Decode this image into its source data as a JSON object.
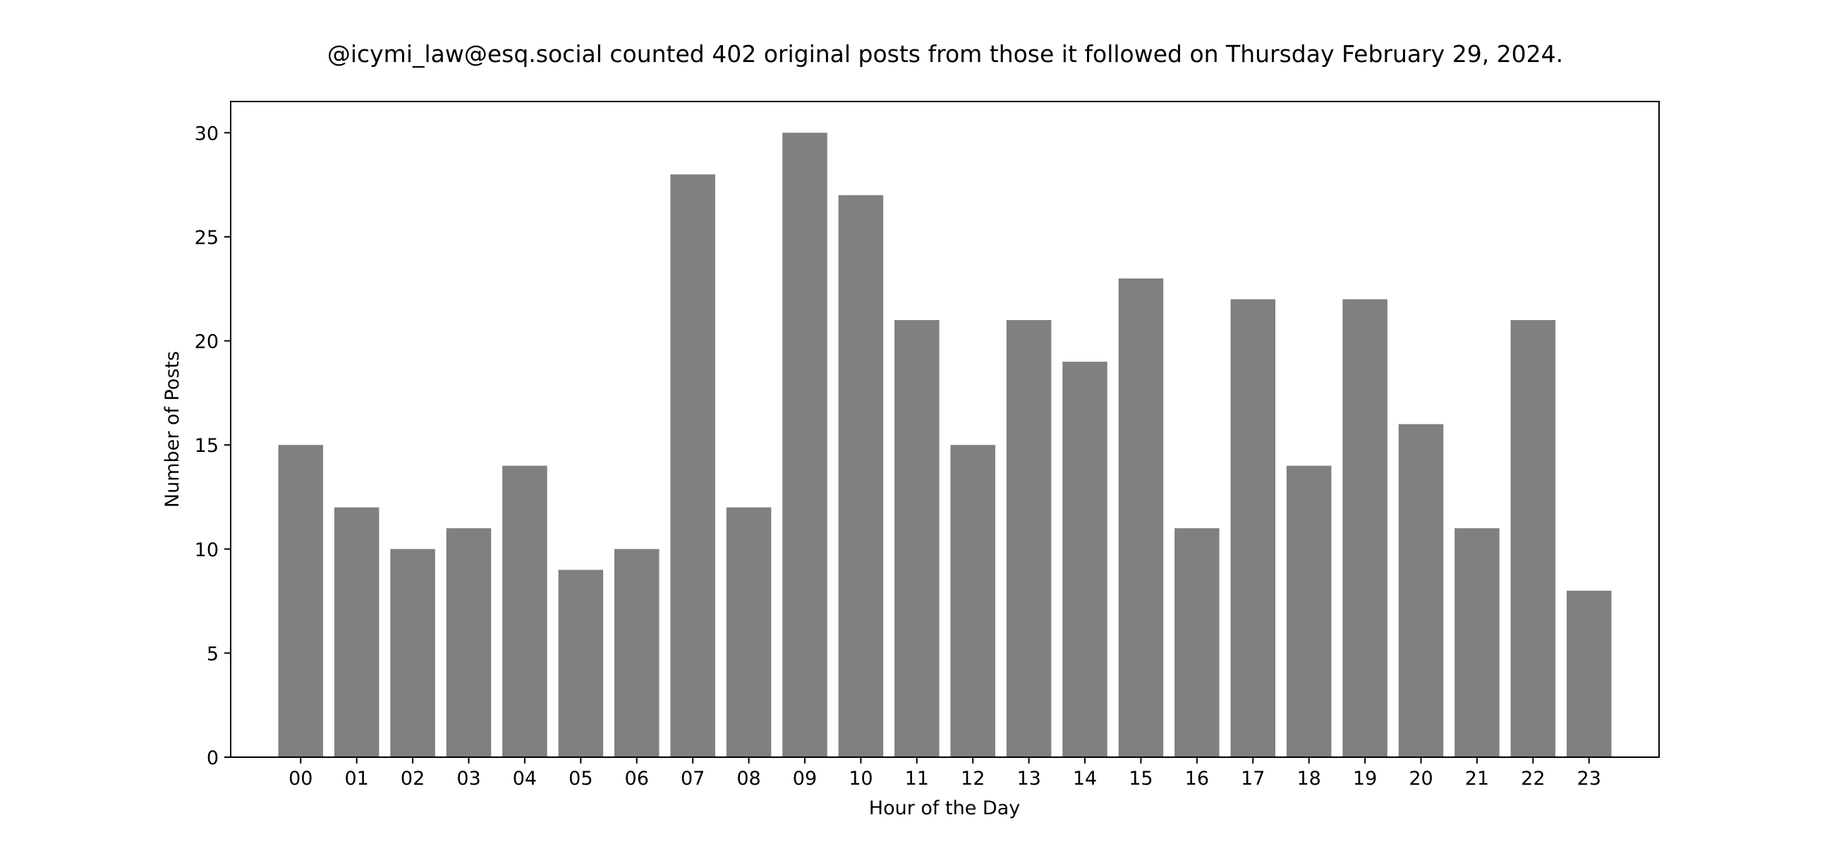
{
  "chart_data": {
    "type": "bar",
    "title": "@icymi_law@esq.social counted 402 original posts from those it followed on Thursday February 29, 2024.",
    "xlabel": "Hour of the Day",
    "ylabel": "Number of Posts",
    "categories": [
      "00",
      "01",
      "02",
      "03",
      "04",
      "05",
      "06",
      "07",
      "08",
      "09",
      "10",
      "11",
      "12",
      "13",
      "14",
      "15",
      "16",
      "17",
      "18",
      "19",
      "20",
      "21",
      "22",
      "23"
    ],
    "values": [
      15,
      12,
      10,
      11,
      14,
      9,
      10,
      28,
      12,
      30,
      27,
      21,
      15,
      21,
      19,
      23,
      11,
      22,
      14,
      22,
      16,
      11,
      21,
      8
    ],
    "ylim": [
      0,
      31.5
    ],
    "yticks": [
      0,
      5,
      10,
      15,
      20,
      25,
      30
    ],
    "bar_color": "#808080",
    "grid": false,
    "legend": "none"
  }
}
